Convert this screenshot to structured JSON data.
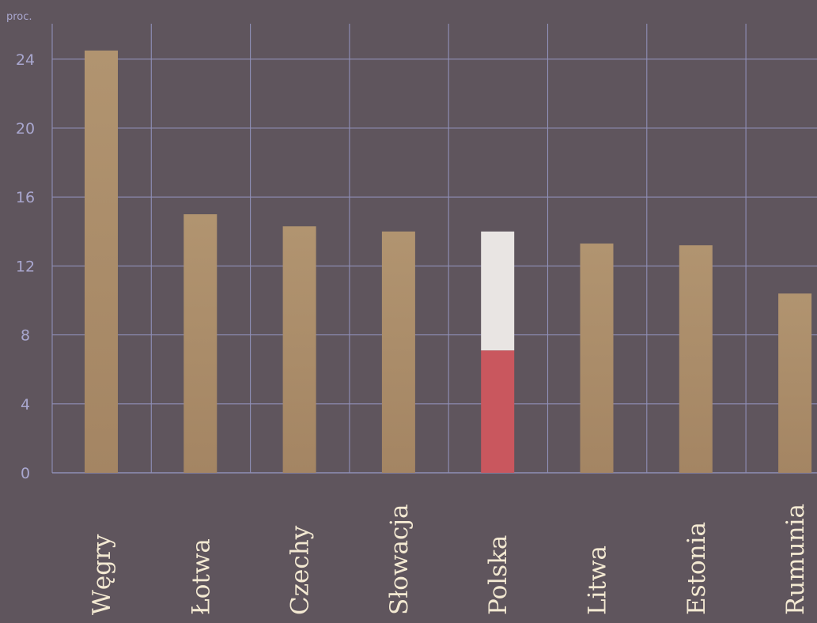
{
  "chart_data": {
    "type": "bar",
    "ylabel": "proc.",
    "ylim": [
      0,
      26
    ],
    "yticks": [
      0,
      4,
      8,
      12,
      16,
      20,
      24
    ],
    "grid": true,
    "categories": [
      "Węgry",
      "Łotwa",
      "Czechy",
      "Słowacja",
      "Polska",
      "Litwa",
      "Estonia",
      "Rumunia"
    ],
    "values": [
      24.5,
      15.0,
      14.3,
      14.0,
      14.0,
      13.3,
      13.2,
      10.4
    ],
    "highlight": {
      "category": "Polska",
      "segments": [
        {
          "value": 7.1,
          "color": "#c9575e"
        },
        {
          "value": 6.9,
          "color": "#e9e5e3"
        }
      ]
    },
    "colors": {
      "background": "#5f555d",
      "bar": "#aa8c6a",
      "grid": "#8f8fb7",
      "tick_text": "#a9a7cf",
      "category_text": "#f3e9d2"
    }
  }
}
